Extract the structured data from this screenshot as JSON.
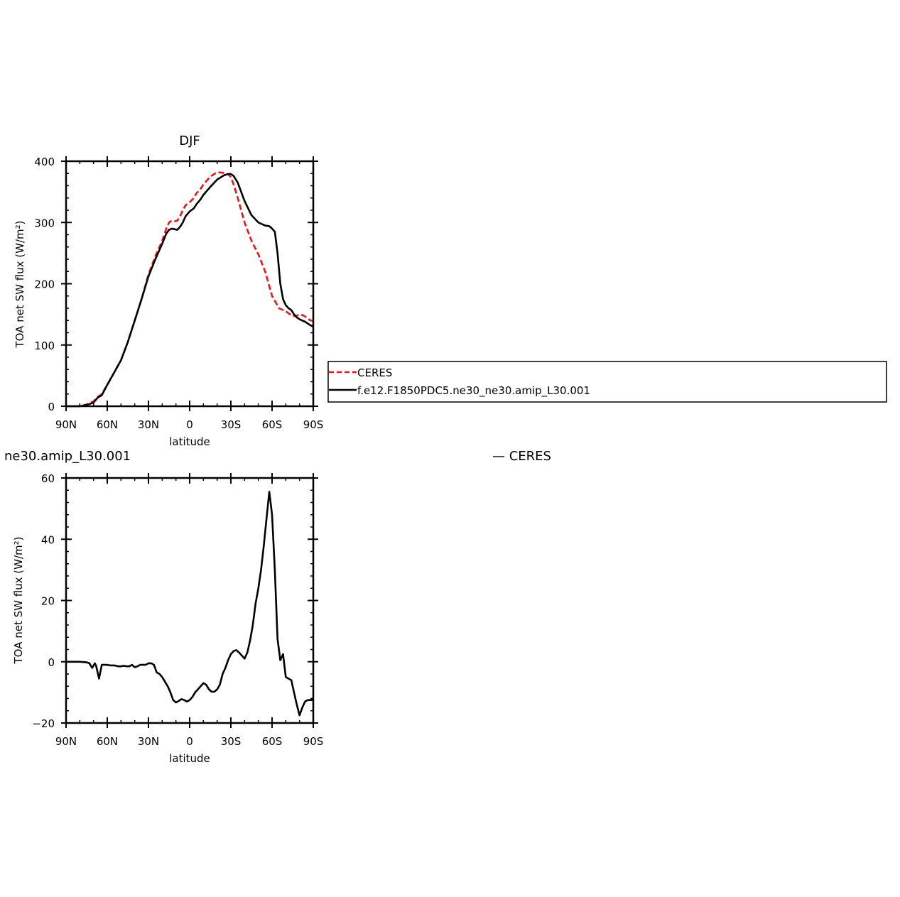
{
  "chart_data": [
    {
      "type": "line",
      "title": "DJF",
      "xlabel": "latitude",
      "ylabel": "TOA net SW flux (W/m²)",
      "xlim": [
        90,
        -90
      ],
      "ylim": [
        0,
        400
      ],
      "x_tick_values": [
        90,
        60,
        30,
        0,
        -30,
        -60,
        -90
      ],
      "x_tick_labels": [
        "90N",
        "60N",
        "30N",
        "0",
        "30S",
        "60S",
        "90S"
      ],
      "y_tick_values": [
        0,
        100,
        200,
        300,
        400
      ],
      "y_tick_labels": [
        "0",
        "100",
        "200",
        "300",
        "400"
      ],
      "legend_position": "right",
      "series": [
        {
          "name": "CERES",
          "color": "#e8161b",
          "dash": "dashed",
          "x": [
            90,
            80,
            75,
            70,
            67,
            64,
            60,
            55,
            50,
            45,
            40,
            35,
            30,
            25,
            20,
            17,
            15,
            13,
            11,
            9,
            7,
            5,
            3,
            0,
            -3,
            -5,
            -8,
            -10,
            -15,
            -20,
            -25,
            -28,
            -30,
            -32,
            -35,
            -40,
            -45,
            -50,
            -55,
            -60,
            -65,
            -70,
            -73,
            -75,
            -78,
            -80,
            -83,
            -85,
            -88,
            -90
          ],
          "y": [
            0,
            0,
            3,
            8,
            15,
            20,
            35,
            55,
            75,
            105,
            140,
            175,
            215,
            245,
            270,
            290,
            300,
            303,
            302,
            303,
            310,
            320,
            328,
            333,
            340,
            348,
            355,
            362,
            375,
            382,
            381,
            379,
            374,
            362,
            340,
            300,
            270,
            248,
            220,
            180,
            160,
            155,
            150,
            147,
            148,
            150,
            148,
            145,
            140,
            140
          ]
        },
        {
          "name": "f.e12.F1850PDC5.ne30_ne30.amip_L30.001",
          "color": "#000000",
          "dash": "solid",
          "x": [
            90,
            80,
            75,
            70,
            67,
            64,
            60,
            55,
            50,
            45,
            40,
            35,
            30,
            25,
            20,
            17,
            15,
            13,
            11,
            9,
            7,
            5,
            3,
            0,
            -3,
            -5,
            -8,
            -10,
            -15,
            -20,
            -25,
            -28,
            -30,
            -32,
            -35,
            -40,
            -45,
            -50,
            -55,
            -58,
            -60,
            -62,
            -64,
            -66,
            -68,
            -70,
            -72,
            -74,
            -76,
            -78,
            -80,
            -82,
            -84,
            -86,
            -88,
            -90
          ],
          "y": [
            0,
            0,
            2,
            6,
            14,
            18,
            35,
            55,
            75,
            105,
            140,
            175,
            212,
            240,
            265,
            282,
            288,
            290,
            289,
            288,
            293,
            300,
            310,
            318,
            323,
            330,
            338,
            345,
            358,
            370,
            377,
            379,
            379,
            376,
            365,
            335,
            312,
            300,
            295,
            294,
            290,
            285,
            250,
            200,
            175,
            165,
            160,
            157,
            150,
            145,
            142,
            140,
            138,
            135,
            132,
            130
          ]
        }
      ]
    },
    {
      "type": "line",
      "title": "ne30.amip_L30.001",
      "title_right": "— CERES",
      "xlabel": "latitude",
      "ylabel": "TOA net SW flux (W/m²)",
      "xlim": [
        90,
        -90
      ],
      "ylim": [
        -20,
        60
      ],
      "x_tick_values": [
        90,
        60,
        30,
        0,
        -30,
        -60,
        -90
      ],
      "x_tick_labels": [
        "90N",
        "60N",
        "30N",
        "0",
        "30S",
        "60S",
        "90S"
      ],
      "y_tick_values": [
        -20,
        0,
        20,
        40,
        60
      ],
      "y_tick_labels": [
        "−20",
        "0",
        "20",
        "40",
        "60"
      ],
      "series": [
        {
          "color": "#000000",
          "dash": "solid",
          "x": [
            90,
            80,
            75,
            73,
            71,
            69,
            68,
            66,
            64,
            60,
            58,
            55,
            52,
            50,
            48,
            46,
            44,
            42,
            40,
            38,
            36,
            34,
            32,
            30,
            28,
            26,
            24,
            22,
            20,
            18,
            16,
            14,
            12,
            10,
            8,
            6,
            4,
            2,
            0,
            -2,
            -4,
            -6,
            -8,
            -10,
            -12,
            -14,
            -16,
            -18,
            -20,
            -22,
            -24,
            -26,
            -28,
            -30,
            -32,
            -34,
            -36,
            -38,
            -40,
            -42,
            -44,
            -46,
            -48,
            -50,
            -52,
            -54,
            -56,
            -58,
            -60,
            -62,
            -64,
            -66,
            -68,
            -70,
            -72,
            -74,
            -76,
            -78,
            -80,
            -82,
            -84,
            -86,
            -88,
            -90
          ],
          "y": [
            0,
            0,
            -0.2,
            -0.5,
            -2.0,
            -0.5,
            -1.5,
            -5.5,
            -1.0,
            -1.0,
            -1.2,
            -1.2,
            -1.5,
            -1.5,
            -1.3,
            -1.5,
            -1.5,
            -1.0,
            -1.8,
            -1.5,
            -1.0,
            -1.0,
            -1.0,
            -0.5,
            -0.5,
            -1.0,
            -3.5,
            -4.0,
            -5.0,
            -6.5,
            -8.0,
            -10.0,
            -12.5,
            -13.3,
            -12.8,
            -12.2,
            -12.5,
            -13.0,
            -12.5,
            -11.5,
            -10.0,
            -9.0,
            -8.0,
            -7.0,
            -7.5,
            -9.0,
            -9.8,
            -9.8,
            -9.0,
            -7.5,
            -4.0,
            -2.0,
            0.5,
            2.5,
            3.5,
            3.8,
            3.0,
            2.0,
            1.0,
            3.0,
            7.0,
            12.0,
            19.0,
            24.0,
            30.0,
            38.0,
            47.0,
            55.5,
            48.0,
            30.0,
            7.5,
            0.5,
            2.5,
            -5.0,
            -5.5,
            -6.0,
            -10.0,
            -14.0,
            -17.5,
            -15.0,
            -13.0,
            -12.5,
            -12.5,
            -12.5
          ]
        }
      ]
    }
  ]
}
